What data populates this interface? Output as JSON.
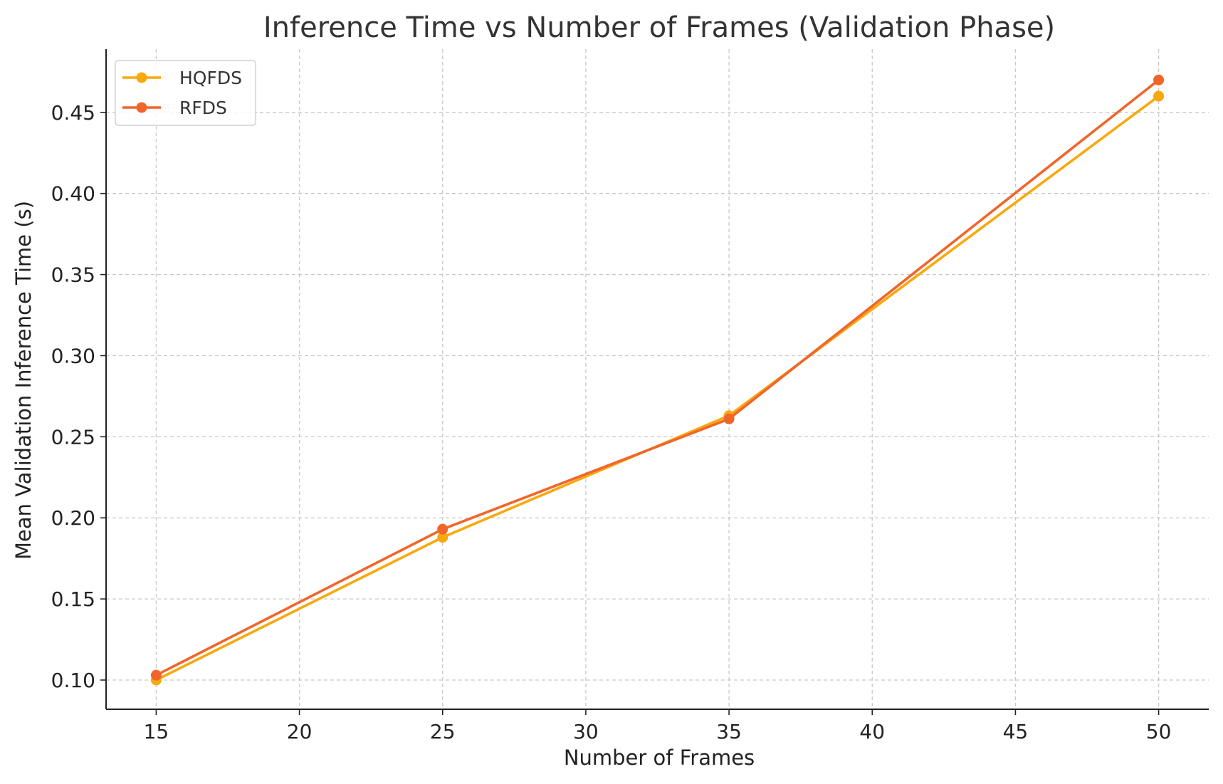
{
  "chart_data": {
    "type": "line",
    "title": "Inference Time vs Number of Frames (Validation Phase)",
    "xlabel": "Number of Frames",
    "ylabel": "Mean Validation Inference Time (s)",
    "x": [
      15,
      25,
      35,
      50
    ],
    "xlim": [
      13.25,
      51.75
    ],
    "ylim": [
      0.082,
      0.489
    ],
    "xticks": [
      15,
      20,
      25,
      30,
      35,
      40,
      45,
      50
    ],
    "xtick_labels": [
      "15",
      "20",
      "25",
      "30",
      "35",
      "40",
      "45",
      "50"
    ],
    "yticks": [
      0.1,
      0.15,
      0.2,
      0.25,
      0.3,
      0.35,
      0.4,
      0.45
    ],
    "ytick_labels": [
      "0.10",
      "0.15",
      "0.20",
      "0.25",
      "0.30",
      "0.35",
      "0.40",
      "0.45"
    ],
    "grid": true,
    "legend_position": "top-left",
    "series": [
      {
        "name": "HQFDS",
        "color": "#F9A80D",
        "values": [
          0.1,
          0.188,
          0.263,
          0.46
        ]
      },
      {
        "name": "RFDS",
        "color": "#F0662A",
        "values": [
          0.103,
          0.193,
          0.261,
          0.47
        ]
      }
    ]
  }
}
